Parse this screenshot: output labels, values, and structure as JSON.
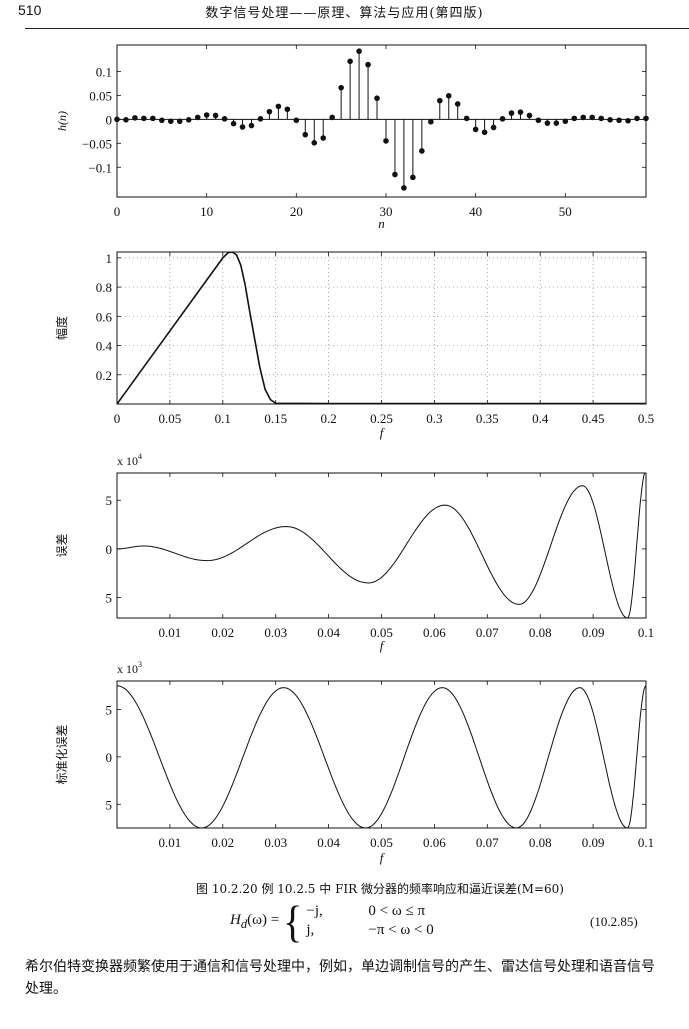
{
  "header": {
    "page_number": "510",
    "title": "数字信号处理——原理、算法与应用(第四版)"
  },
  "figure": {
    "caption": "图 10.2.20   例 10.2.5 中 FIR 微分器的频率响应和逼近误差(M=60)",
    "chart_data": [
      {
        "type": "stem",
        "xlabel": "n",
        "ylabel": "h(n)",
        "xlim": [
          0,
          59
        ],
        "ylim": [
          -0.162,
          0.155
        ],
        "xticks": [
          0,
          10,
          20,
          30,
          40,
          50
        ],
        "xtick_labels": [
          "0",
          "10",
          "20",
          "30",
          "40",
          "50"
        ],
        "yticks": [
          0.1,
          0.05,
          0,
          -0.05,
          -0.1
        ],
        "ytick_labels": [
          "0.1",
          "0.05",
          "0",
          "−0.05",
          "−0.1"
        ],
        "grid": false,
        "x": [
          0,
          1,
          2,
          3,
          4,
          5,
          6,
          7,
          8,
          9,
          10,
          11,
          12,
          13,
          14,
          15,
          16,
          17,
          18,
          19,
          20,
          21,
          22,
          23,
          24,
          25,
          26,
          27,
          28,
          29,
          30,
          31,
          32,
          33,
          34,
          35,
          36,
          37,
          38,
          39,
          40,
          41,
          42,
          43,
          44,
          45,
          46,
          47,
          48,
          49,
          50,
          51,
          52,
          53,
          54,
          55,
          56,
          57,
          58,
          59
        ],
        "values": [
          0,
          -0.001,
          0.003,
          0.002,
          0.002,
          -0.002,
          -0.004,
          -0.004,
          -0.001,
          0.004,
          0.009,
          0.008,
          0.001,
          -0.009,
          -0.016,
          -0.013,
          0.001,
          0.016,
          0.027,
          0.021,
          -0.002,
          -0.032,
          -0.049,
          -0.039,
          0.004,
          0.066,
          0.121,
          0.142,
          0.114,
          0.044,
          -0.045,
          -0.115,
          -0.143,
          -0.121,
          -0.066,
          -0.005,
          0.039,
          0.049,
          0.032,
          0.002,
          -0.021,
          -0.027,
          -0.017,
          0.001,
          0.013,
          0.015,
          0.008,
          -0.002,
          -0.008,
          -0.008,
          -0.004,
          0.002,
          0.004,
          0.004,
          0.002,
          -0.001,
          -0.002,
          -0.003,
          0.002,
          0.002
        ]
      },
      {
        "type": "line",
        "xlabel": "f",
        "ylabel": "幅度",
        "xlim": [
          0,
          0.5
        ],
        "ylim": [
          0,
          1.04
        ],
        "xticks": [
          0,
          0.05,
          0.1,
          0.15,
          0.2,
          0.25,
          0.3,
          0.35,
          0.4,
          0.45,
          0.5
        ],
        "xtick_labels": [
          "0",
          "0.05",
          "0.1",
          "0.15",
          "0.2",
          "0.25",
          "0.3",
          "0.35",
          "0.4",
          "0.45",
          "0.5"
        ],
        "yticks": [
          1,
          0.8,
          0.6,
          0.4,
          0.2
        ],
        "ytick_labels": [
          "1",
          "0.8",
          "0.6",
          "0.4",
          "0.2"
        ],
        "grid": true,
        "x": [
          0,
          0.025,
          0.05,
          0.075,
          0.1,
          0.105,
          0.109,
          0.113,
          0.117,
          0.121,
          0.125,
          0.13,
          0.135,
          0.14,
          0.145,
          0.15,
          0.2,
          0.25,
          0.3,
          0.35,
          0.4,
          0.45,
          0.5
        ],
        "values": [
          0,
          0.25,
          0.5,
          0.75,
          1.0,
          1.035,
          1.04,
          1.02,
          0.95,
          0.82,
          0.65,
          0.45,
          0.25,
          0.1,
          0.03,
          0.005,
          0.003,
          0.003,
          0.003,
          0.003,
          0.003,
          0.003,
          0.003
        ]
      },
      {
        "type": "line",
        "xlabel": "f",
        "ylabel": "误差",
        "scale_label": "x 10",
        "scale_exponent": "4",
        "xlim": [
          0,
          0.1
        ],
        "ylim": [
          -7.1,
          7.8
        ],
        "xticks": [
          0.01,
          0.02,
          0.03,
          0.04,
          0.05,
          0.06,
          0.07,
          0.08,
          0.09,
          0.1
        ],
        "xtick_labels": [
          "0.01",
          "0.02",
          "0.03",
          "0.04",
          "0.05",
          "0.06",
          "0.07",
          "0.08",
          "0.09",
          "0.1"
        ],
        "yticks": [
          5,
          0,
          -5
        ],
        "ytick_labels": [
          "5",
          "0",
          "5"
        ],
        "grid": false,
        "extrema_x": [
          0,
          0.005,
          0.017,
          0.032,
          0.0475,
          0.062,
          0.076,
          0.088,
          0.0965,
          0.1
        ],
        "extrema_y": [
          0,
          0.3,
          -1.2,
          2.3,
          -3.5,
          4.5,
          -5.7,
          6.5,
          -7.1,
          8
        ]
      },
      {
        "type": "line",
        "xlabel": "f",
        "ylabel": "标准化误差",
        "scale_label": "x 10",
        "scale_exponent": "3",
        "xlim": [
          0,
          0.1
        ],
        "ylim": [
          -7.5,
          8.0
        ],
        "xticks": [
          0.01,
          0.02,
          0.03,
          0.04,
          0.05,
          0.06,
          0.07,
          0.08,
          0.09,
          0.1
        ],
        "xtick_labels": [
          "0.01",
          "0.02",
          "0.03",
          "0.04",
          "0.05",
          "0.06",
          "0.07",
          "0.08",
          "0.09",
          "0.1"
        ],
        "yticks": [
          5,
          0,
          -5
        ],
        "ytick_labels": [
          "5",
          "0",
          "5"
        ],
        "grid": false,
        "extrema_x": [
          0,
          0.016,
          0.0315,
          0.047,
          0.0615,
          0.0755,
          0.0875,
          0.0965,
          0.1
        ],
        "extrema_y": [
          7.5,
          -7.5,
          7.3,
          -7.5,
          7.3,
          -7.5,
          7.3,
          -7.5,
          7.5
        ]
      }
    ]
  },
  "equation": {
    "lhs": "H",
    "lhs_sub": "d",
    "lhs_arg": "(ω) =",
    "case1_value": "−j,",
    "case1_condition": "0 < ω ≤ π",
    "case2_value": "j,",
    "case2_condition": "−π < ω < 0",
    "number": "(10.2.85)"
  },
  "paragraph": "希尔伯特变换器频繁使用于通信和信号处理中，例如，单边调制信号的产生、雷达信号处理和语音信号处理。"
}
